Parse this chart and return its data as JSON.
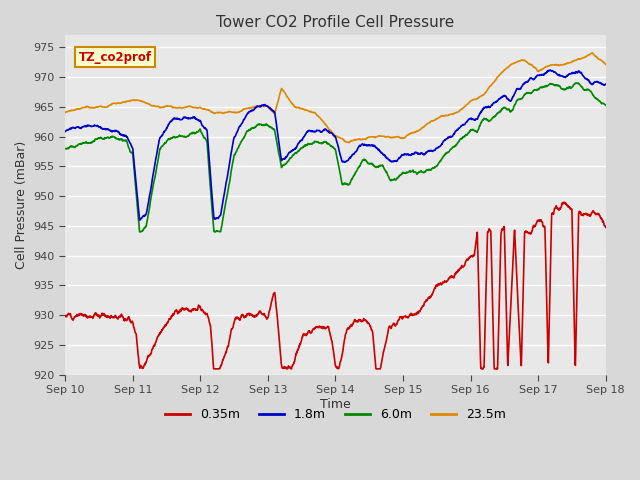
{
  "title": "Tower CO2 Profile Cell Pressure",
  "xlabel": "Time",
  "ylabel": "Cell Pressure (mBar)",
  "ylim": [
    920,
    977
  ],
  "yticks": [
    920,
    925,
    930,
    935,
    940,
    945,
    950,
    955,
    960,
    965,
    970,
    975
  ],
  "xtick_labels": [
    "Sep 10",
    "Sep 11",
    "Sep 12",
    "Sep 13",
    "Sep 14",
    "Sep 15",
    "Sep 16",
    "Sep 17",
    "Sep 18"
  ],
  "colors": {
    "0.35m": "#cc0000",
    "1.8m": "#0000cc",
    "6.0m": "#008800",
    "23.5m": "#dd8800"
  },
  "legend_label": "TZ_co2prof",
  "legend_bg": "#ffffcc",
  "legend_border": "#cc8800",
  "plot_bg": "#e8e8e8",
  "fig_bg": "#d8d8d8",
  "linewidth": 1.2
}
